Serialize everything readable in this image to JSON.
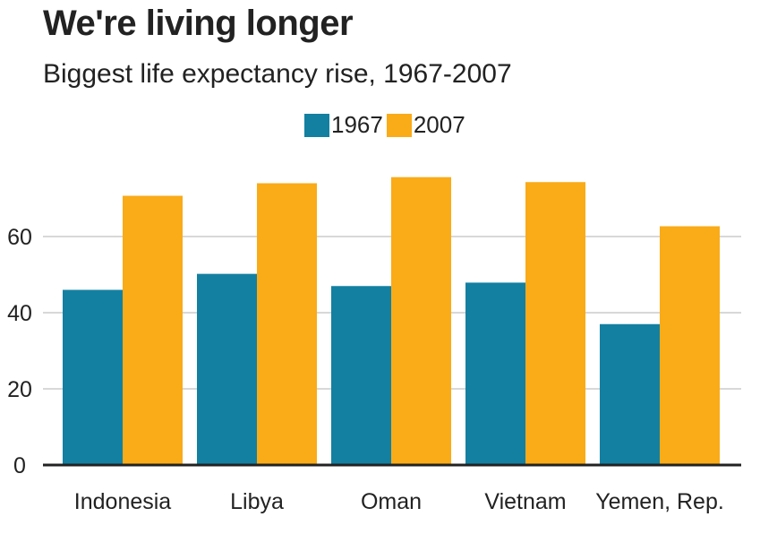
{
  "title": "We're living longer",
  "subtitle": "Biggest life expectancy rise, 1967-2007",
  "colors": {
    "s1967": "#1380A1",
    "s2007": "#FAAB18",
    "grid": "#cbcbcb",
    "axis": "#222222"
  },
  "chart_data": {
    "type": "bar",
    "categories": [
      "Indonesia",
      "Libya",
      "Oman",
      "Vietnam",
      "Yemen, Rep."
    ],
    "series": [
      {
        "name": "1967",
        "values": [
          46.0,
          50.2,
          47.0,
          47.9,
          37.0
        ]
      },
      {
        "name": "2007",
        "values": [
          70.7,
          74.0,
          75.6,
          74.3,
          62.7
        ]
      }
    ],
    "title": "We're living longer",
    "subtitle": "Biggest life expectancy rise, 1967-2007",
    "xlabel": "",
    "ylabel": "",
    "ylim": [
      0,
      80
    ],
    "yticks": [
      0,
      20,
      40,
      60
    ],
    "grid": true,
    "legend_position": "top"
  }
}
